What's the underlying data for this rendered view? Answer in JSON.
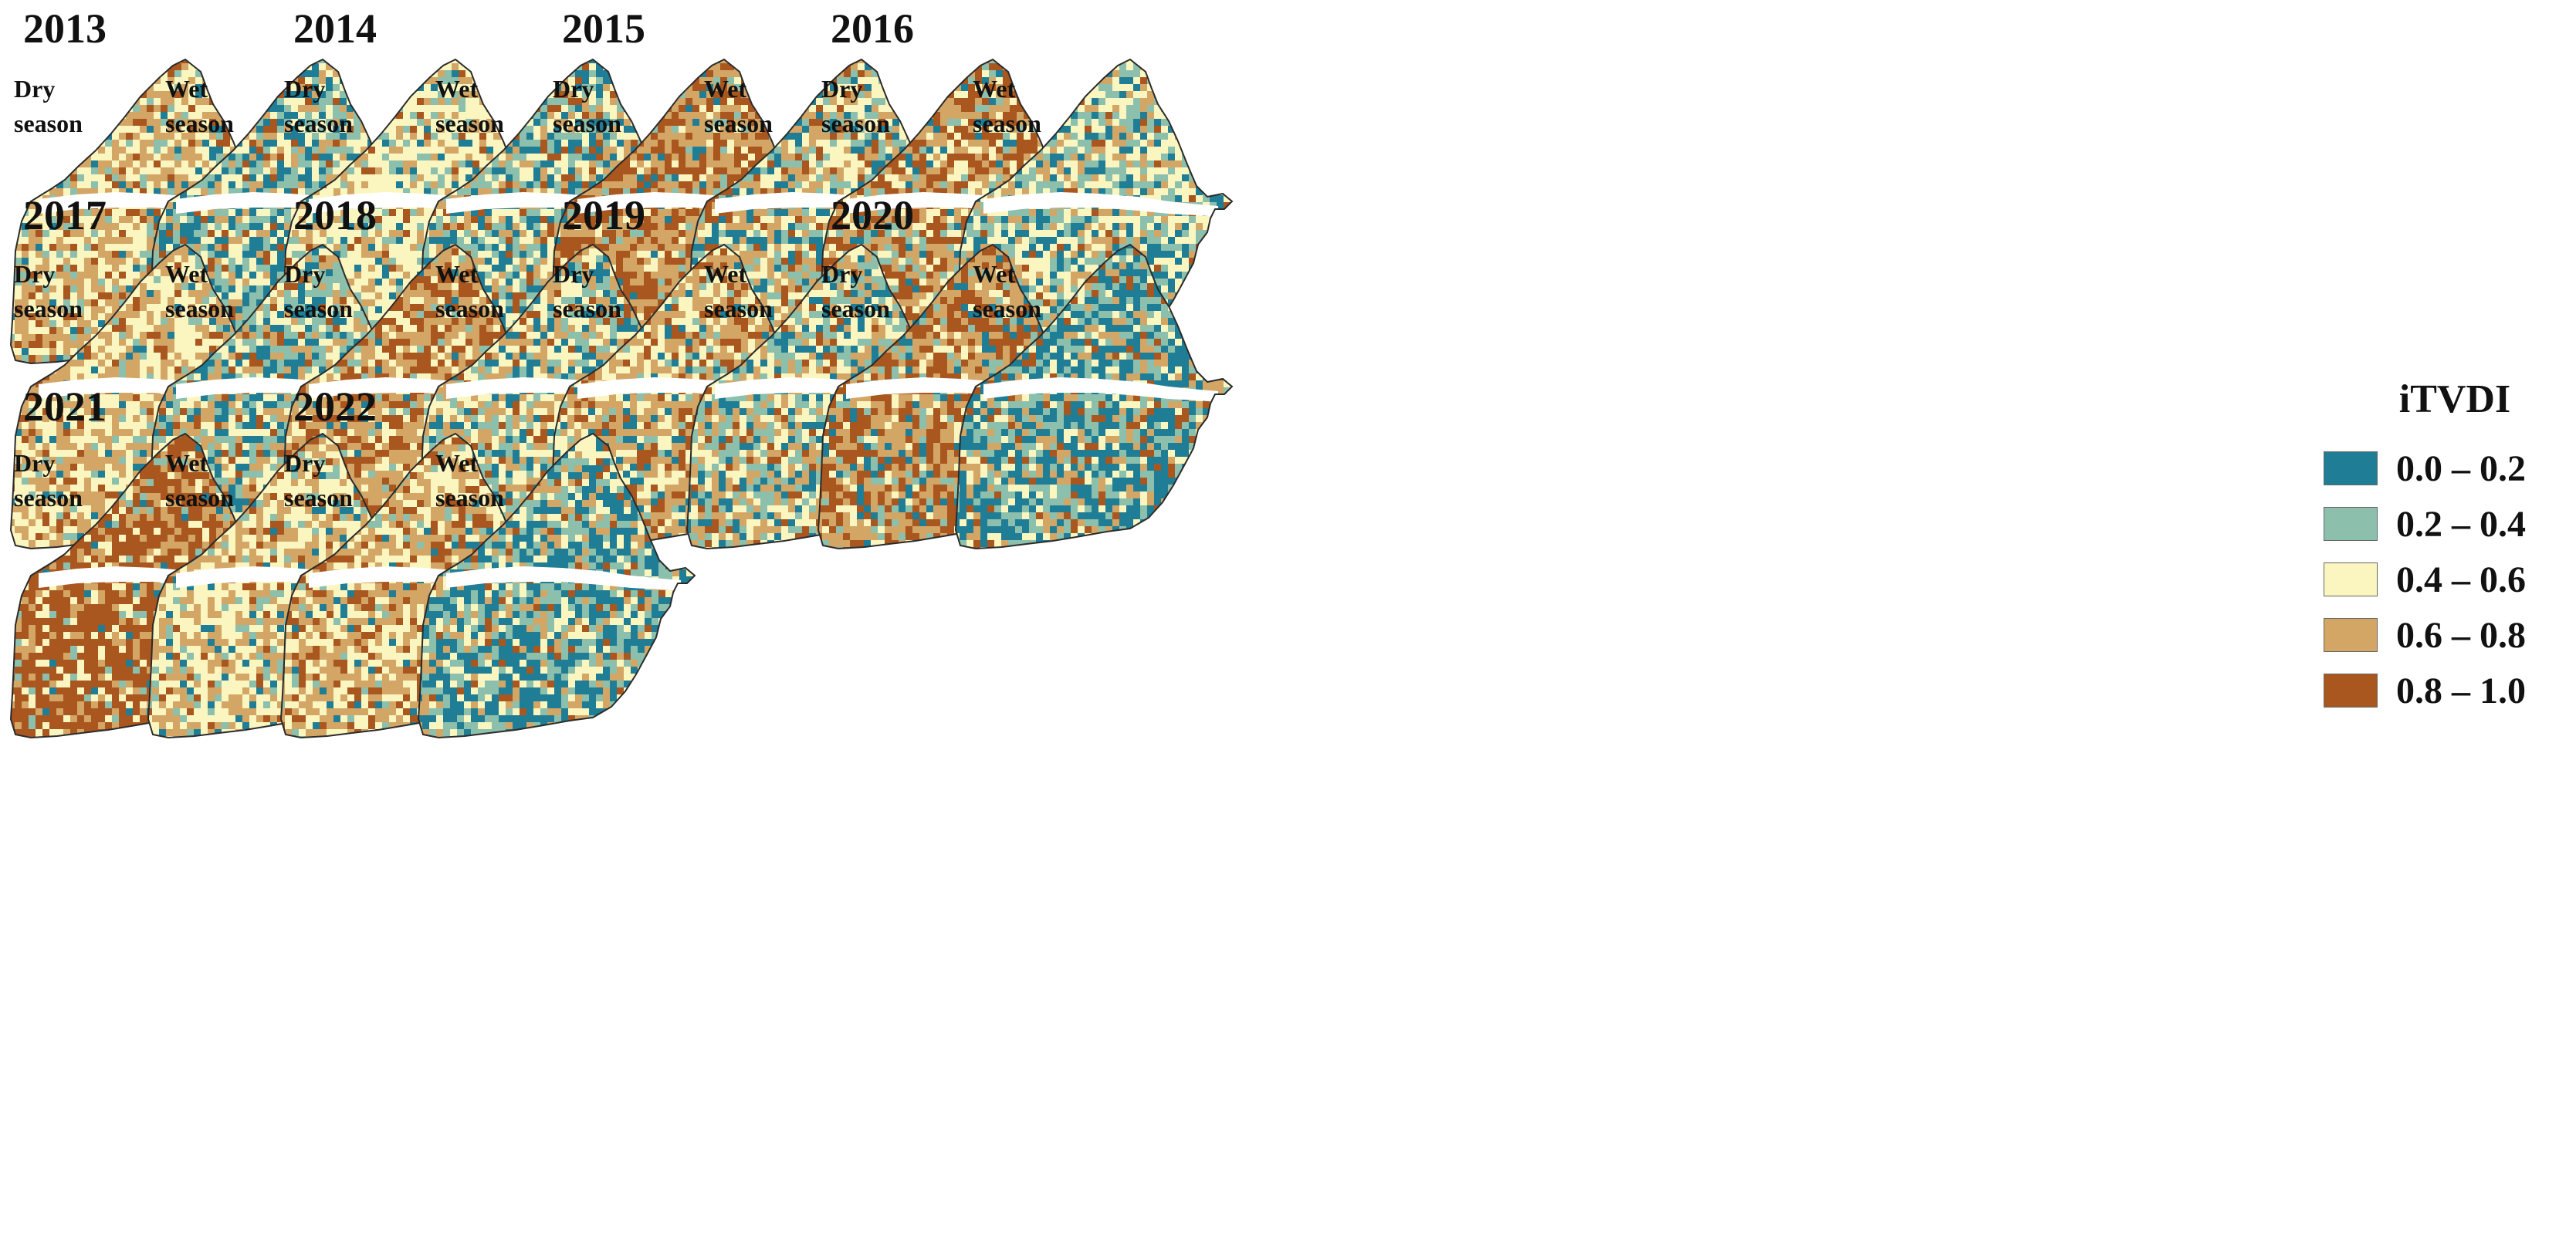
{
  "colors": {
    "c0": "#1f7e95",
    "c1": "#8cc0ac",
    "c2": "#fbf6c0",
    "c3": "#d3a666",
    "c4": "#a9561f",
    "river": "#ffffff",
    "outline": "#2b2b2b"
  },
  "legend": {
    "title": "iTVDI",
    "items": [
      {
        "label": "0.0 – 0.2",
        "color": "#1f7e95"
      },
      {
        "label": "0.2 – 0.4",
        "color": "#8cc0ac"
      },
      {
        "label": "0.4 – 0.6",
        "color": "#fbf6c0"
      },
      {
        "label": "0.6 – 0.8",
        "color": "#d3a666"
      },
      {
        "label": "0.8 – 1.0",
        "color": "#a9561f"
      }
    ]
  },
  "season_labels": {
    "dry": "Dry\nseason",
    "wet": "Wet\nseason"
  },
  "years": [
    {
      "year": "2013",
      "dry": [
        0.05,
        0.12,
        0.35,
        0.38,
        0.1
      ],
      "wet": [
        0.28,
        0.26,
        0.22,
        0.17,
        0.07
      ]
    },
    {
      "year": "2014",
      "dry": [
        0.06,
        0.14,
        0.55,
        0.2,
        0.05
      ],
      "wet": [
        0.25,
        0.25,
        0.22,
        0.18,
        0.1
      ]
    },
    {
      "year": "2015",
      "dry": [
        0.05,
        0.06,
        0.1,
        0.42,
        0.37
      ],
      "wet": [
        0.18,
        0.18,
        0.26,
        0.26,
        0.12
      ]
    },
    {
      "year": "2016",
      "dry": [
        0.06,
        0.1,
        0.18,
        0.3,
        0.36
      ],
      "wet": [
        0.2,
        0.26,
        0.32,
        0.18,
        0.04
      ]
    },
    {
      "year": "2017",
      "dry": [
        0.05,
        0.08,
        0.4,
        0.4,
        0.07
      ],
      "wet": [
        0.25,
        0.25,
        0.22,
        0.2,
        0.08
      ]
    },
    {
      "year": "2018",
      "dry": [
        0.03,
        0.05,
        0.2,
        0.42,
        0.3
      ],
      "wet": [
        0.18,
        0.22,
        0.28,
        0.24,
        0.08
      ]
    },
    {
      "year": "2019",
      "dry": [
        0.08,
        0.08,
        0.28,
        0.4,
        0.16
      ],
      "wet": [
        0.18,
        0.26,
        0.24,
        0.24,
        0.08
      ]
    },
    {
      "year": "2020",
      "dry": [
        0.1,
        0.1,
        0.12,
        0.35,
        0.33
      ],
      "wet": [
        0.4,
        0.25,
        0.13,
        0.14,
        0.08
      ]
    },
    {
      "year": "2021",
      "dry": [
        0.04,
        0.06,
        0.12,
        0.18,
        0.6
      ],
      "wet": [
        0.05,
        0.1,
        0.45,
        0.33,
        0.07
      ]
    },
    {
      "year": "2022",
      "dry": [
        0.05,
        0.06,
        0.32,
        0.38,
        0.19
      ],
      "wet": [
        0.35,
        0.25,
        0.18,
        0.16,
        0.06
      ]
    }
  ]
}
